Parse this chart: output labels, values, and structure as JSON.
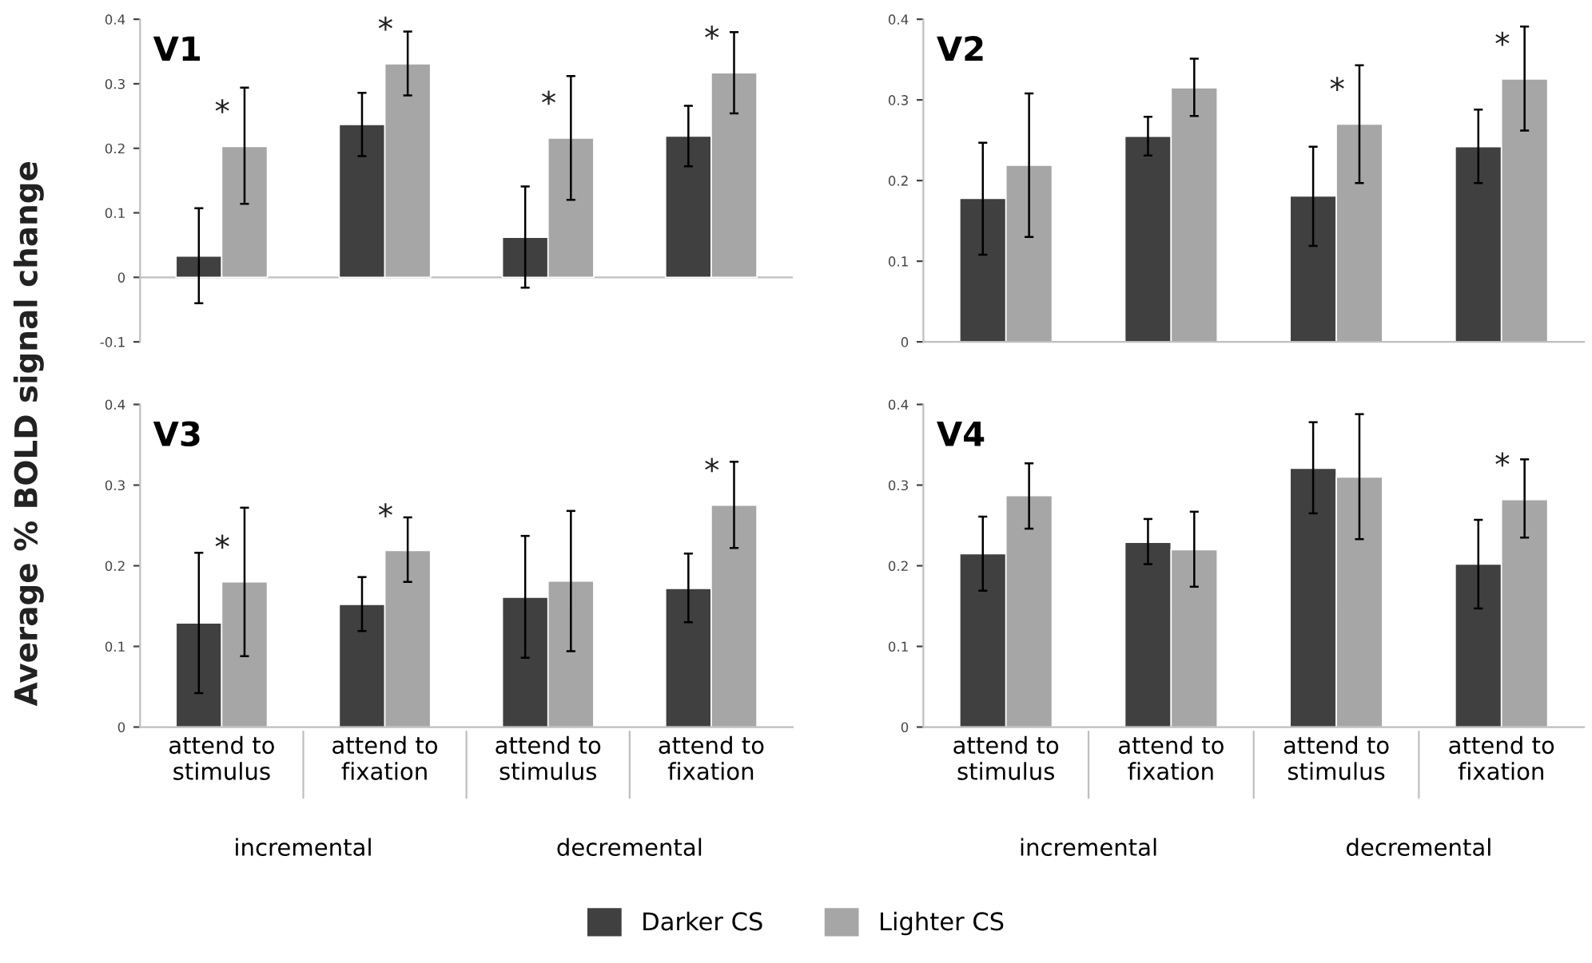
{
  "chart_data": [
    {
      "type": "bar",
      "title": "V1",
      "ylabel": "Average % BOLD signal change",
      "categories": [
        null,
        null,
        null,
        null
      ],
      "tick_labels": "y",
      "ylim": [
        -0.1,
        0.4
      ],
      "yticks": [
        {
          "value": -0.1,
          "label": "-0.1"
        },
        0,
        0.1,
        0.2,
        0.3,
        0.4
      ],
      "legend": "bottom",
      "ref_lines": [
        {
          "axis": "y",
          "value": 0,
          "color": "#bfbfbf"
        }
      ],
      "series": [
        {
          "name": "Darker CS",
          "color": "#404040",
          "values": [
            0.033,
            0.237,
            0.062,
            0.219
          ],
          "errors": [
            [
              -0.04,
              0.107
            ],
            [
              0.188,
              0.286
            ],
            [
              -0.016,
              0.141
            ],
            [
              0.172,
              0.266
            ]
          ]
        },
        {
          "name": "Lighter CS",
          "color": "#a6a6a6",
          "values": [
            0.203,
            0.331,
            0.216,
            0.317
          ],
          "errors": [
            [
              0.114,
              0.294
            ],
            [
              0.282,
              0.381
            ],
            [
              0.12,
              0.312
            ],
            [
              0.254,
              0.38
            ]
          ]
        }
      ],
      "annotations": [
        {
          "text": "*",
          "y": 0.203
        },
        {
          "text": "*",
          "y": 0.331
        },
        {
          "text": "*",
          "y": 0.216
        },
        {
          "text": "*",
          "y": 0.317
        }
      ]
    },
    {
      "type": "bar",
      "title": "V2",
      "categories": [
        null,
        null,
        null,
        null
      ],
      "tick_labels": "y",
      "ylim": [
        0,
        0.4
      ],
      "yticks": [
        0,
        0.1,
        0.2,
        0.3,
        0.4
      ],
      "series": [
        {
          "color": "#404040",
          "values": [
            0.178,
            0.255,
            0.181,
            0.242
          ],
          "errors": [
            [
              0.108,
              0.247
            ],
            [
              0.231,
              0.279
            ],
            [
              0.119,
              0.242
            ],
            [
              0.197,
              0.288
            ]
          ]
        },
        {
          "color": "#a6a6a6",
          "values": [
            0.219,
            0.315,
            0.27,
            0.326
          ],
          "errors": [
            [
              0.13,
              0.308
            ],
            [
              0.28,
              0.351
            ],
            [
              0.197,
              0.343
            ],
            [
              0.262,
              0.391
            ]
          ]
        }
      ],
      "annotations": [
        {
          "text": "*",
          "y": 0.27
        },
        {
          "text": "*",
          "y": 0.326
        }
      ]
    },
    {
      "type": "bar",
      "title": "V3",
      "categories": [
        "attend to\nstimulus",
        "attend to\nfixation",
        "attend to\nstimulus",
        "attend to\nfixation"
      ],
      "ylim": [
        0,
        0.4
      ],
      "yticks": [
        0,
        0.1,
        0.2,
        0.3,
        0.4
      ],
      "series": [
        {
          "color": "#404040",
          "values": [
            0.129,
            0.152,
            0.161,
            0.172
          ],
          "errors": [
            [
              0.042,
              0.216
            ],
            [
              0.119,
              0.186
            ],
            [
              0.086,
              0.237
            ],
            [
              0.13,
              0.215
            ]
          ]
        },
        {
          "color": "#a6a6a6",
          "values": [
            0.18,
            0.219,
            0.181,
            0.275
          ],
          "errors": [
            [
              0.088,
              0.272
            ],
            [
              0.18,
              0.26
            ],
            [
              0.094,
              0.268
            ],
            [
              0.222,
              0.329
            ]
          ]
        }
      ],
      "annotations": [
        "incremental",
        "decremental",
        {
          "text": "*",
          "y": 0.18
        },
        {
          "text": "*",
          "y": 0.219
        },
        {
          "text": "*",
          "y": 0.275
        }
      ]
    },
    {
      "type": "bar",
      "title": "V4",
      "categories": [
        "attend to\nstimulus",
        "attend to\nfixation",
        "attend to\nstimulus",
        "attend to\nfixation"
      ],
      "ylim": [
        0,
        0.4
      ],
      "yticks": [
        0,
        0.1,
        0.2,
        0.3,
        0.4
      ],
      "series": [
        {
          "color": "#404040",
          "values": [
            0.215,
            0.229,
            0.321,
            0.202
          ],
          "errors": [
            [
              0.169,
              0.261
            ],
            [
              0.202,
              0.258
            ],
            [
              0.265,
              0.378
            ],
            [
              0.147,
              0.257
            ]
          ]
        },
        {
          "color": "#a6a6a6",
          "values": [
            0.287,
            0.22,
            0.31,
            0.282
          ],
          "errors": [
            [
              0.246,
              0.327
            ],
            [
              0.174,
              0.267
            ],
            [
              0.233,
              0.388
            ],
            [
              0.235,
              0.332
            ]
          ]
        }
      ],
      "annotations": [
        "incremental",
        "decremental",
        {
          "text": "*",
          "y": 0.282
        }
      ]
    }
  ]
}
